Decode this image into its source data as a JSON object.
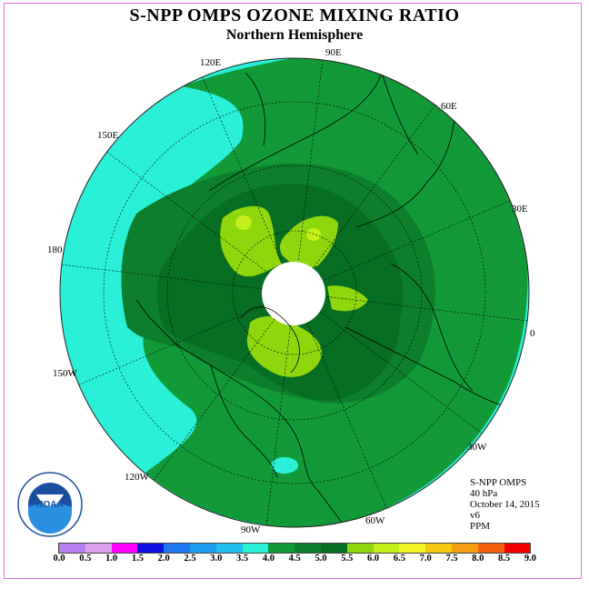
{
  "title": "S-NPP OMPS OZONE MIXING RATIO",
  "subtitle": "Northern Hemisphere",
  "map": {
    "projection": "north polar stereographic",
    "longitude_labels": [
      "90E",
      "60E",
      "30E",
      "0",
      "30W",
      "60W",
      "90W",
      "120W",
      "150W",
      "180",
      "150E",
      "120E"
    ],
    "colors": {
      "ocean_outside": "#2af0d8",
      "level_4_0": "#129a38",
      "level_4_5": "#0d7f2c",
      "level_5_0": "#8fd60d",
      "level_5_5": "#c4ef1a",
      "polar_night": "#ffffff",
      "coast": "#000000"
    }
  },
  "info": {
    "instrument": "S-NPP OMPS",
    "level": "40 hPa",
    "date": "October 14, 2015",
    "version": "v6",
    "units": "PPM"
  },
  "logo": {
    "text": "NOAA",
    "ring_text": "NATIONAL OCEANIC AND ATMOSPHERIC ADMINISTRATION"
  },
  "colorbar": {
    "ticks": [
      "0.0",
      "0.5",
      "1.0",
      "1.5",
      "2.0",
      "2.5",
      "3.0",
      "3.5",
      "4.0",
      "4.5",
      "5.0",
      "5.5",
      "6.0",
      "6.5",
      "7.0",
      "7.5",
      "8.0",
      "8.5",
      "9.0"
    ],
    "colors": [
      "#b87ff0",
      "#dca0f0",
      "#ff00ff",
      "#1010e0",
      "#1e78f0",
      "#1e9ef0",
      "#20c0f0",
      "#2af0d8",
      "#129a38",
      "#0d7f2c",
      "#066d22",
      "#8fd60d",
      "#c4ef1a",
      "#f4f420",
      "#f4c810",
      "#f49e10",
      "#f46010",
      "#f00000",
      "#8b5a3c"
    ]
  }
}
